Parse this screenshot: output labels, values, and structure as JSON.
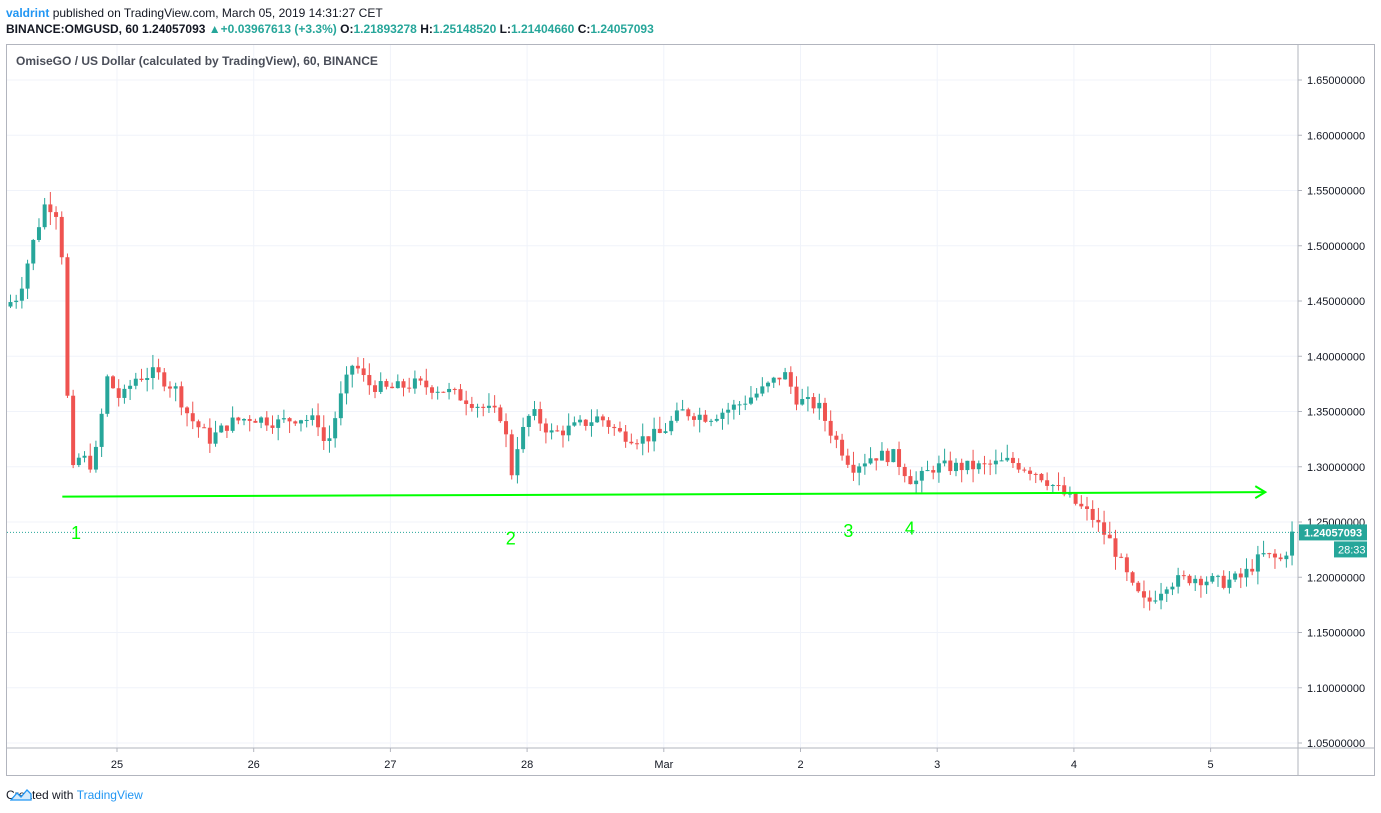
{
  "header": {
    "author": "valdrint",
    "published_text": "published on TradingView.com, March 05, 2019 14:31:27 CET",
    "symbol": "BINANCE:OMGUSD, 60",
    "last": "1.24057093",
    "change": "+0.03967613 (+3.3%)",
    "open_label": "O:",
    "open": "1.21893278",
    "high_label": "H:",
    "high": "1.25148520",
    "low_label": "L:",
    "low": "1.21404660",
    "close_label": "C:",
    "close": "1.24057093"
  },
  "footer": {
    "created_with": "Created with",
    "brand": "TradingView"
  },
  "colors": {
    "up": "#26a69a",
    "down": "#ef5350",
    "annotation": "#00ff00",
    "grid": "#f0f3fa"
  },
  "chart_data": {
    "type": "candlestick",
    "title": "OmiseGO / US Dollar (calculated by TradingView), 60, BINANCE",
    "interval": "60",
    "x_ticks": [
      "25",
      "26",
      "27",
      "28",
      "Mar",
      "2",
      "3",
      "4",
      "5"
    ],
    "y_ticks": [
      "1.65000000",
      "1.60000000",
      "1.55000000",
      "1.50000000",
      "1.45000000",
      "1.40000000",
      "1.35000000",
      "1.30000000",
      "1.25000000",
      "1.20000000",
      "1.15000000",
      "1.10000000",
      "1.05000000"
    ],
    "ylim": [
      1.04,
      1.675
    ],
    "last_price_label": "1.24057093",
    "countdown_label": "28:33",
    "price_path": [
      [
        24.2,
        1.445
      ],
      [
        24.3,
        1.455
      ],
      [
        24.4,
        1.5
      ],
      [
        24.5,
        1.54
      ],
      [
        24.58,
        1.53
      ],
      [
        24.62,
        1.49
      ],
      [
        24.68,
        1.29
      ],
      [
        24.75,
        1.31
      ],
      [
        24.85,
        1.3
      ],
      [
        24.95,
        1.38
      ],
      [
        25.05,
        1.36
      ],
      [
        25.15,
        1.38
      ],
      [
        25.3,
        1.385
      ],
      [
        25.45,
        1.37
      ],
      [
        25.55,
        1.345
      ],
      [
        25.7,
        1.325
      ],
      [
        25.85,
        1.34
      ],
      [
        26.0,
        1.345
      ],
      [
        26.2,
        1.34
      ],
      [
        26.35,
        1.345
      ],
      [
        26.5,
        1.34
      ],
      [
        26.55,
        1.315
      ],
      [
        26.65,
        1.36
      ],
      [
        26.75,
        1.395
      ],
      [
        26.85,
        1.375
      ],
      [
        27.0,
        1.37
      ],
      [
        27.2,
        1.375
      ],
      [
        27.4,
        1.37
      ],
      [
        27.6,
        1.36
      ],
      [
        27.75,
        1.35
      ],
      [
        27.85,
        1.345
      ],
      [
        27.9,
        1.29
      ],
      [
        27.95,
        1.32
      ],
      [
        28.05,
        1.35
      ],
      [
        28.2,
        1.33
      ],
      [
        28.35,
        1.335
      ],
      [
        28.55,
        1.345
      ],
      [
        28.7,
        1.33
      ],
      [
        28.85,
        1.325
      ],
      [
        29.0,
        1.33
      ],
      [
        29.15,
        1.35
      ],
      [
        29.35,
        1.345
      ],
      [
        29.55,
        1.355
      ],
      [
        29.75,
        1.37
      ],
      [
        29.9,
        1.385
      ],
      [
        30.0,
        1.36
      ],
      [
        30.15,
        1.355
      ],
      [
        30.25,
        1.33
      ],
      [
        30.4,
        1.3
      ],
      [
        30.55,
        1.31
      ],
      [
        30.7,
        1.31
      ],
      [
        30.85,
        1.285
      ],
      [
        31.0,
        1.3
      ],
      [
        31.15,
        1.3
      ],
      [
        31.35,
        1.3
      ],
      [
        31.55,
        1.305
      ],
      [
        31.75,
        1.295
      ],
      [
        31.9,
        1.28
      ],
      [
        32.0,
        1.27
      ],
      [
        32.15,
        1.255
      ],
      [
        32.3,
        1.23
      ],
      [
        32.45,
        1.19
      ],
      [
        32.55,
        1.175
      ],
      [
        32.7,
        1.195
      ],
      [
        32.9,
        1.2
      ],
      [
        33.1,
        1.195
      ],
      [
        33.25,
        1.2
      ],
      [
        33.4,
        1.22
      ],
      [
        33.55,
        1.215
      ],
      [
        33.62,
        1.24
      ]
    ],
    "annotations": {
      "support_line": {
        "from": [
          24.6,
          1.273
        ],
        "to": [
          33.4,
          1.277
        ],
        "arrow": true
      },
      "labels": [
        {
          "text": "1",
          "x": 24.7,
          "y": 1.24
        },
        {
          "text": "2",
          "x": 27.88,
          "y": 1.235
        },
        {
          "text": "3",
          "x": 30.35,
          "y": 1.242
        },
        {
          "text": "4",
          "x": 30.8,
          "y": 1.244
        }
      ]
    }
  }
}
